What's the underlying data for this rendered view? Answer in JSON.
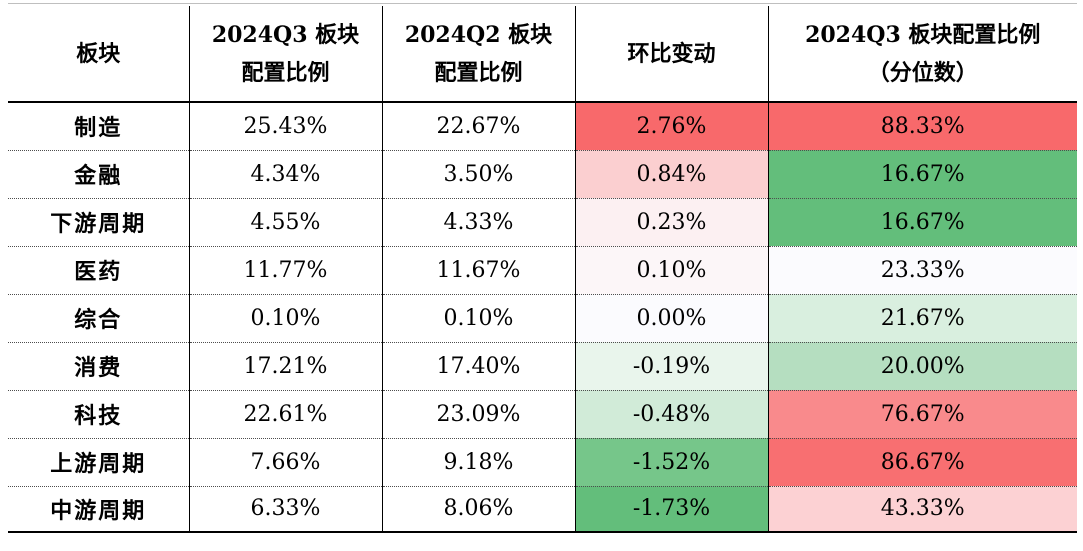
{
  "table": {
    "headers": [
      [
        "板块"
      ],
      [
        "2024Q3 板块",
        "配置比例"
      ],
      [
        "2024Q2 板块",
        "配置比例"
      ],
      [
        "环比变动"
      ],
      [
        "2024Q3 板块配置比例",
        "（分位数）"
      ]
    ],
    "rows": [
      {
        "sector": "制造",
        "q3": "25.43%",
        "q2": "22.67%",
        "change": "2.76%",
        "percentile": "88.33%",
        "change_color": "#f8696b",
        "percentile_color": "#f8696b"
      },
      {
        "sector": "金融",
        "q3": "4.34%",
        "q2": "3.50%",
        "change": "0.84%",
        "percentile": "16.67%",
        "change_color": "#fbcfd0",
        "percentile_color": "#63be7b"
      },
      {
        "sector": "下游周期",
        "q3": "4.55%",
        "q2": "4.33%",
        "change": "0.23%",
        "percentile": "16.67%",
        "change_color": "#fcf0f2",
        "percentile_color": "#63be7b"
      },
      {
        "sector": "医药",
        "q3": "11.77%",
        "q2": "11.67%",
        "change": "0.10%",
        "percentile": "23.33%",
        "change_color": "#fcf6f8",
        "percentile_color": "#fbfbfe"
      },
      {
        "sector": "综合",
        "q3": "0.10%",
        "q2": "0.10%",
        "change": "0.00%",
        "percentile": "21.67%",
        "change_color": "#fbfbfe",
        "percentile_color": "#d9efdf"
      },
      {
        "sector": "消费",
        "q3": "17.21%",
        "q2": "17.40%",
        "change": "-0.19%",
        "percentile": "20.00%",
        "change_color": "#e9f5ec",
        "percentile_color": "#b5deC0"
      },
      {
        "sector": "科技",
        "q3": "22.61%",
        "q2": "23.09%",
        "change": "-0.48%",
        "percentile": "76.67%",
        "change_color": "#d1ebd8",
        "percentile_color": "#f98a8c"
      },
      {
        "sector": "上游周期",
        "q3": "7.66%",
        "q2": "9.18%",
        "change": "-1.52%",
        "percentile": "86.67%",
        "change_color": "#76c68a",
        "percentile_color": "#f86f71"
      },
      {
        "sector": "中游周期",
        "q3": "6.33%",
        "q2": "8.06%",
        "change": "-1.73%",
        "percentile": "43.33%",
        "change_color": "#63be7b",
        "percentile_color": "#fcd1d3"
      }
    ]
  }
}
